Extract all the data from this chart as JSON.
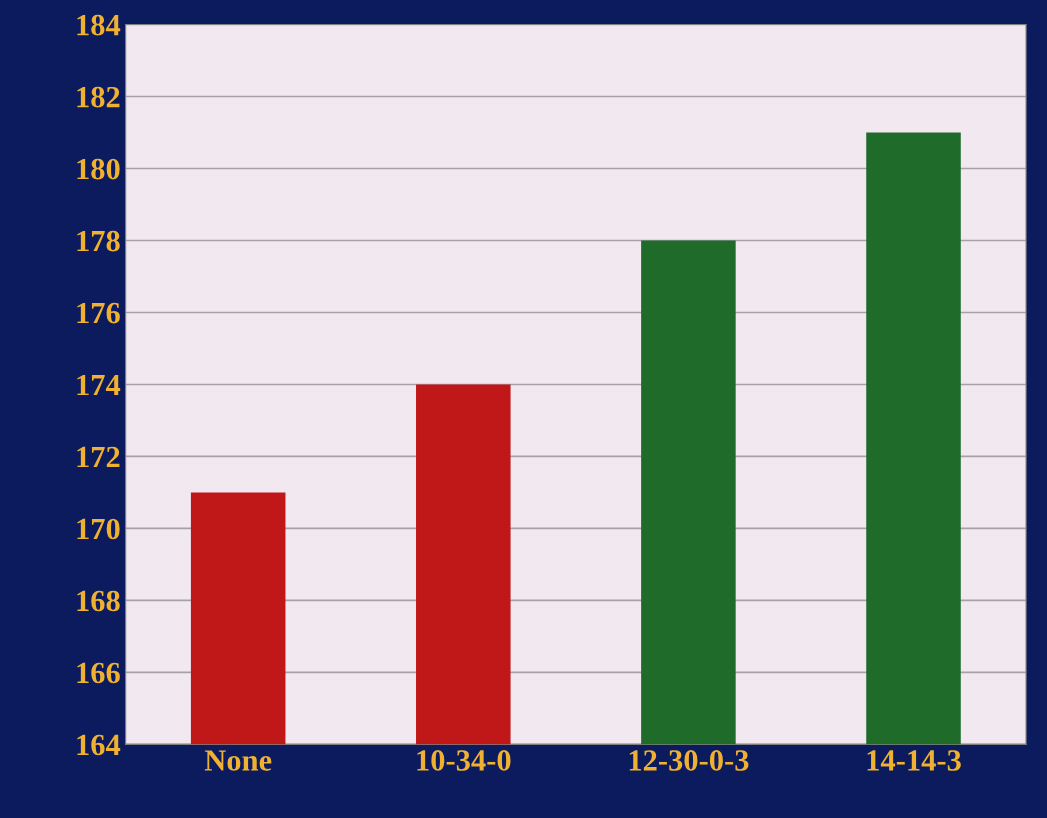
{
  "chart_data": {
    "type": "bar",
    "categories": [
      "None",
      "10-34-0",
      "12-30-0-3",
      "14-14-3"
    ],
    "values": [
      171,
      174,
      178,
      181
    ],
    "colors": [
      "#c01818",
      "#c01818",
      "#1e6b2a",
      "#1e6b2a"
    ],
    "ylim": [
      164,
      184
    ],
    "yticks": [
      164,
      166,
      168,
      170,
      172,
      174,
      176,
      178,
      180,
      182,
      184
    ],
    "grid": "y"
  }
}
